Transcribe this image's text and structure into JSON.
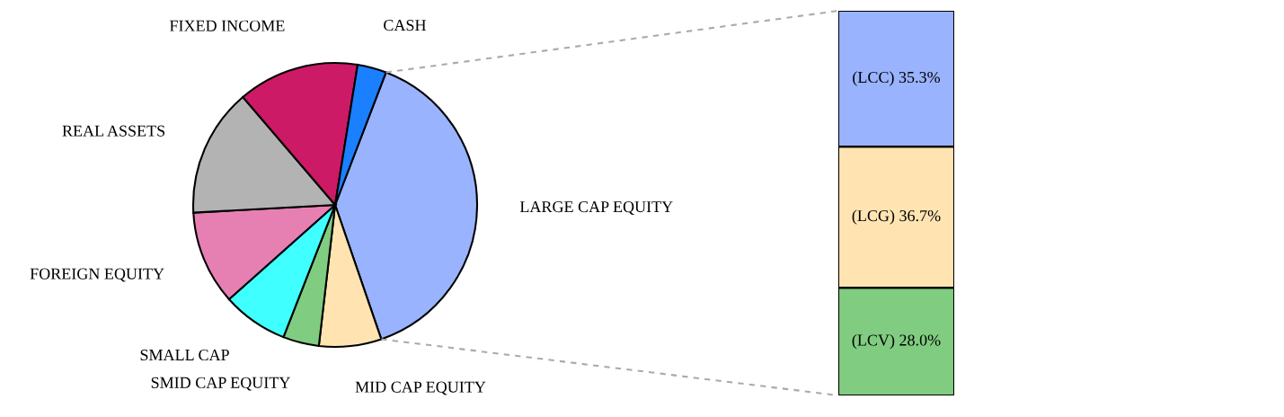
{
  "chart_data": [
    {
      "type": "pie",
      "categories": [
        "LARGE CAP EQUITY",
        "MID CAP EQUITY",
        "SMID CAP EQUITY",
        "SMALL CAP",
        "FOREIGN EQUITY",
        "REAL ASSETS",
        "FIXED INCOME",
        "CASH"
      ],
      "values": [
        38.9,
        7.1,
        4.1,
        7.5,
        10.7,
        14.6,
        13.8,
        3.3
      ],
      "colors": [
        "#99b3ff",
        "#ffe4b2",
        "#80cc80",
        "#40ffff",
        "#e680b3",
        "#b3b3b3",
        "#cc1a66",
        "#1a80ff"
      ]
    },
    {
      "type": "bar",
      "stacked": true,
      "categories": [
        null
      ],
      "tick_labels": false,
      "series": [
        {
          "color": "#80cc80",
          "values": [
            28.0
          ],
          "value_labels": [
            "(LCV) 28.0%"
          ]
        },
        {
          "color": "#ffe4b2",
          "values": [
            36.7
          ],
          "value_labels": [
            "(LCG) 36.7%"
          ]
        },
        {
          "color": "#99b3ff",
          "values": [
            35.3
          ],
          "value_labels": [
            "(LCC) 35.3%"
          ]
        }
      ]
    }
  ]
}
